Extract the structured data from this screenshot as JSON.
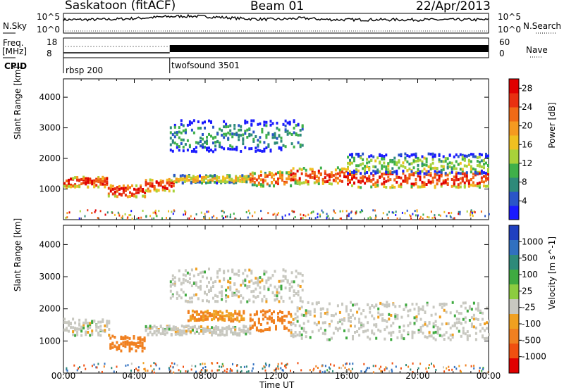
{
  "header": {
    "station": "Saskatoon (fitACF)",
    "beam": "Beam 01",
    "date": "22/Apr/2013"
  },
  "strip": {
    "nsky_label": "N.Sky",
    "nsearch_label": "N.Search",
    "freq_label_1": "Freq.",
    "freq_label_2": "[MHz]",
    "nave_label": "Nave",
    "cpid_label": "CPID",
    "nsky_ticks": [
      "10^5",
      "10^0"
    ],
    "freq_ticks": [
      "18",
      "8"
    ],
    "nave_ticks": [
      "60",
      "0"
    ],
    "nsearch_ticks": [
      "10^5",
      "10^0"
    ],
    "cpid_segments": [
      {
        "name": "rbsp 200",
        "start_hour": 0
      },
      {
        "name": "twofsound 3501",
        "start_hour": 6
      }
    ]
  },
  "colors": {
    "power_scale": [
      "#1a1aff",
      "#2a55c8",
      "#2e8a7a",
      "#3fb04a",
      "#a8d23a",
      "#f0c020",
      "#f59a20",
      "#f06a15",
      "#e83010",
      "#e00000"
    ],
    "velocity_scale": [
      "#2040c0",
      "#3070c0",
      "#2e8a7a",
      "#3faa40",
      "#8ccc40",
      "#c8c8c0",
      "#f0a020",
      "#f08020",
      "#f05010",
      "#e00000"
    ],
    "ground_scatter": "#c8c8c0"
  },
  "chart_data": [
    {
      "type": "heatmap",
      "panel": "power",
      "ylabel": "Slant Range [km]",
      "ylim": [
        0,
        4600
      ],
      "yticks": [
        "1000",
        "2000",
        "3000",
        "4000"
      ],
      "xlim_hours": [
        0,
        24
      ],
      "colorbar_label": "Power [dB]",
      "colorbar_ticks": [
        "4",
        "8",
        "12",
        "16",
        "20",
        "24",
        "28"
      ],
      "colorbar_range": [
        0,
        30
      ],
      "echo_bands": [
        {
          "t0": 0.0,
          "t1": 2.5,
          "r_center": 1200,
          "r_width": 260,
          "value": 26
        },
        {
          "t0": 2.5,
          "t1": 4.6,
          "r_center": 900,
          "r_width": 300,
          "value": 27
        },
        {
          "t0": 4.6,
          "t1": 6.2,
          "r_center": 1100,
          "r_width": 320,
          "value": 26
        },
        {
          "t0": 6.2,
          "t1": 10.5,
          "r_center": 1300,
          "r_width": 200,
          "value": 16
        },
        {
          "t0": 10.5,
          "t1": 12.8,
          "r_center": 1300,
          "r_width": 380,
          "value": 22
        },
        {
          "t0": 12.8,
          "t1": 16.0,
          "r_center": 1400,
          "r_width": 420,
          "value": 24
        },
        {
          "t0": 16.0,
          "t1": 24.0,
          "r_center": 1300,
          "r_width": 420,
          "value": 25
        },
        {
          "t0": 16.0,
          "t1": 24.0,
          "r_center": 1800,
          "r_width": 500,
          "value": 12
        },
        {
          "t0": 6.0,
          "t1": 13.5,
          "r_center": 2700,
          "r_width": 800,
          "value": 8
        }
      ]
    },
    {
      "type": "heatmap",
      "panel": "velocity",
      "ylabel": "Slant Range [km]",
      "xlabel": "Time UT",
      "ylim": [
        0,
        4600
      ],
      "yticks": [
        "1000",
        "2000",
        "3000",
        "4000"
      ],
      "xticks": [
        "00:00",
        "04:00",
        "08:00",
        "12:00",
        "16:00",
        "20:00",
        "00:00"
      ],
      "xlim_hours": [
        0,
        24
      ],
      "colorbar_label": "Velocity [m s^-1]",
      "colorbar_ticks": [
        "1000",
        "500",
        "100",
        "25",
        "-25",
        "-100",
        "-500",
        "-1000"
      ],
      "echo_bands": [
        {
          "t0": 0.0,
          "t1": 2.6,
          "r_center": 1400,
          "r_width": 400,
          "value": 0
        },
        {
          "t0": 2.6,
          "t1": 4.6,
          "r_center": 900,
          "r_width": 360,
          "value": -300
        },
        {
          "t0": 4.6,
          "t1": 10.5,
          "r_center": 1300,
          "r_width": 220,
          "value": 0
        },
        {
          "t0": 7.0,
          "t1": 10.2,
          "r_center": 1750,
          "r_width": 250,
          "value": -100
        },
        {
          "t0": 10.5,
          "t1": 12.8,
          "r_center": 1600,
          "r_width": 500,
          "value": -200
        },
        {
          "t0": 12.8,
          "t1": 24.0,
          "r_center": 1600,
          "r_width": 900,
          "value": 0
        },
        {
          "t0": 6.0,
          "t1": 13.5,
          "r_center": 2700,
          "r_width": 800,
          "value": 0
        }
      ]
    }
  ]
}
